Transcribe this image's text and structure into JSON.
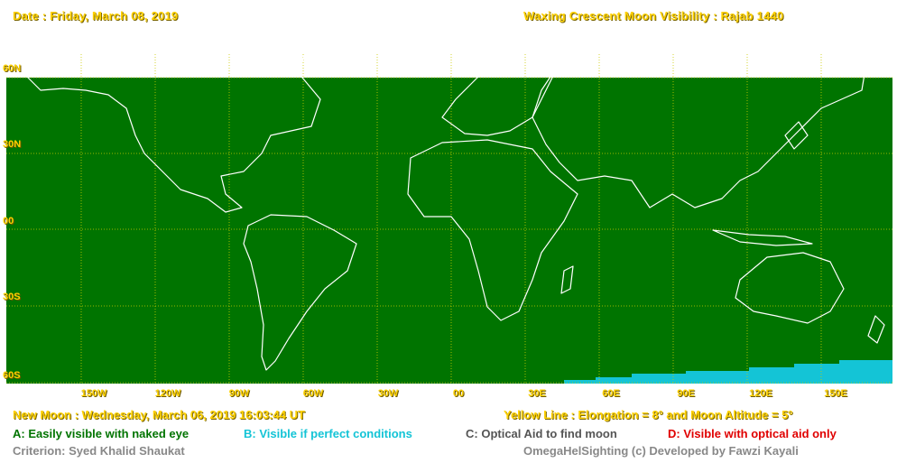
{
  "header": {
    "date": "Date : Friday, March 08, 2019",
    "title": "Waxing Crescent Moon Visibility : Rajab 1440"
  },
  "latitudes": [
    "60N",
    "30N",
    "00",
    "30S",
    "60S"
  ],
  "longitudes": [
    "150W",
    "120W",
    "90W",
    "60W",
    "30W",
    "00",
    "30E",
    "60E",
    "90E",
    "120E",
    "150E"
  ],
  "footer": {
    "new_moon": "New Moon : Wednesday, March 06, 2019  16:03:44  UT",
    "yellow_line": "Yellow Line : Elongation = 8°  and Moon Altitude = 5°",
    "legend_a": "A: Easily visible with naked eye",
    "legend_b": "B: Visible if perfect conditions",
    "legend_c": "C: Optical Aid to find moon",
    "legend_d": "D: Visible with optical aid only",
    "criterion": "Criterion: Syed Khalid Shaukat",
    "credit": "OmegaHelSighting  (c)  Developed by Fawzi Kayali"
  },
  "colors": {
    "zone_a": "#007400",
    "zone_b": "#14c4d6",
    "zone_c": "#555555",
    "zone_d": "#e00000",
    "label_yellow": "#ffd200",
    "grid": "#cccc00"
  }
}
